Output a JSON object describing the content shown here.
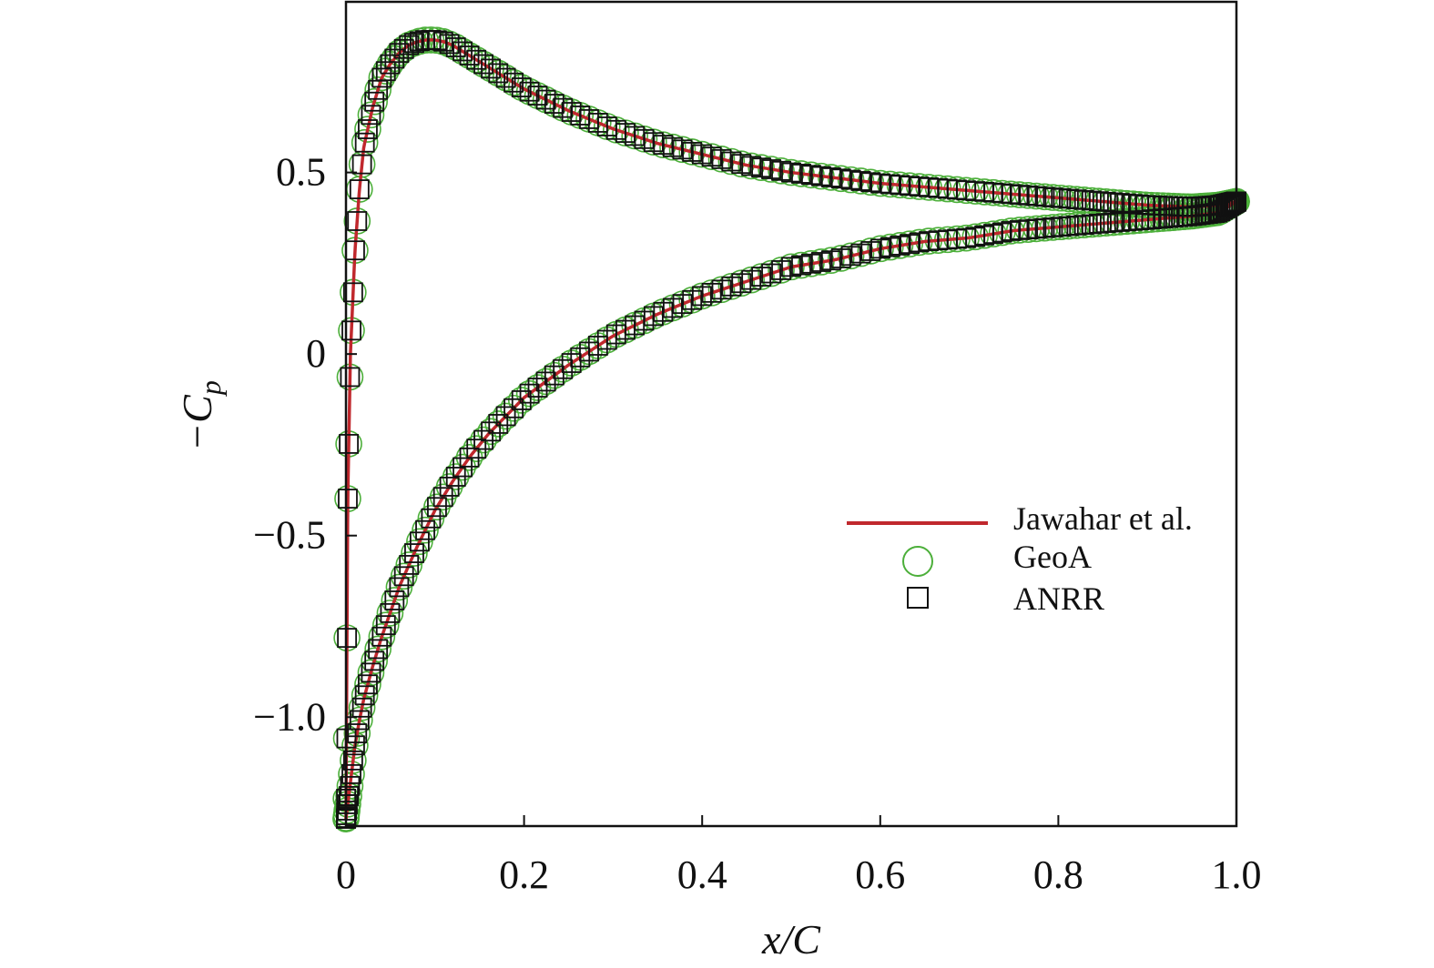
{
  "chart_data": {
    "type": "line",
    "title": "",
    "xlabel": "x/C",
    "ylabel": "−C_p",
    "ylabel_main": "−C",
    "ylabel_sub": "p",
    "xlim": [
      0,
      1.0
    ],
    "ylim": [
      -1.3,
      0.97
    ],
    "x_ticks": [
      0,
      0.2,
      0.4,
      0.6,
      0.8,
      1.0
    ],
    "x_tick_labels": [
      "0",
      "0.2",
      "0.4",
      "0.6",
      "0.8",
      "1.0"
    ],
    "y_ticks": [
      -1.0,
      -0.5,
      0,
      0.5
    ],
    "y_tick_labels": [
      "−1.0",
      "−0.5",
      "0",
      "0.5"
    ],
    "grid": false,
    "legend_position": "right",
    "colors": {
      "Jawahar et al.": "#c0282d",
      "GeoA": "#4caf3a",
      "ANRR": "#111111"
    },
    "series": [
      {
        "name": "Jawahar et al.",
        "style": "line",
        "upper": {
          "x": [
            0,
            0.002,
            0.005,
            0.01,
            0.015,
            0.02,
            0.03,
            0.04,
            0.05,
            0.06,
            0.07,
            0.08,
            0.09,
            0.1,
            0.11,
            0.12,
            0.14,
            0.16,
            0.18,
            0.2,
            0.25,
            0.3,
            0.35,
            0.4,
            0.45,
            0.5,
            0.55,
            0.6,
            0.65,
            0.7,
            0.75,
            0.8,
            0.85,
            0.9,
            0.95,
            0.98,
            1.0
          ],
          "y": [
            -1.28,
            -0.4,
            0.0,
            0.28,
            0.45,
            0.57,
            0.68,
            0.76,
            0.8,
            0.83,
            0.85,
            0.86,
            0.865,
            0.865,
            0.86,
            0.85,
            0.82,
            0.79,
            0.76,
            0.73,
            0.67,
            0.62,
            0.58,
            0.55,
            0.52,
            0.5,
            0.485,
            0.47,
            0.46,
            0.45,
            0.44,
            0.43,
            0.42,
            0.41,
            0.405,
            0.41,
            0.42
          ]
        },
        "lower": {
          "x": [
            0,
            0.005,
            0.01,
            0.015,
            0.02,
            0.03,
            0.04,
            0.05,
            0.06,
            0.08,
            0.1,
            0.12,
            0.14,
            0.16,
            0.18,
            0.2,
            0.25,
            0.3,
            0.35,
            0.4,
            0.45,
            0.5,
            0.55,
            0.6,
            0.65,
            0.7,
            0.75,
            0.8,
            0.85,
            0.9,
            0.95,
            0.98,
            1.0
          ],
          "y": [
            -1.28,
            -1.18,
            -1.08,
            -1.01,
            -0.95,
            -0.86,
            -0.78,
            -0.71,
            -0.64,
            -0.53,
            -0.43,
            -0.35,
            -0.28,
            -0.22,
            -0.17,
            -0.12,
            -0.03,
            0.05,
            0.11,
            0.16,
            0.2,
            0.24,
            0.26,
            0.29,
            0.31,
            0.32,
            0.34,
            0.35,
            0.36,
            0.37,
            0.38,
            0.39,
            0.42
          ]
        }
      },
      {
        "name": "GeoA",
        "style": "markers",
        "marker": "circle",
        "follows": "Jawahar et al."
      },
      {
        "name": "ANRR",
        "style": "markers",
        "marker": "square",
        "follows": "Jawahar et al."
      }
    ]
  }
}
